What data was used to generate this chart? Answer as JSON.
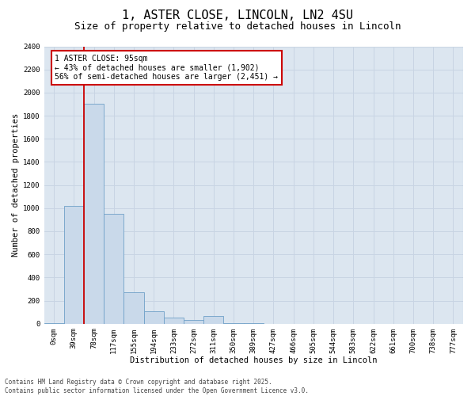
{
  "title_line1": "1, ASTER CLOSE, LINCOLN, LN2 4SU",
  "title_line2": "Size of property relative to detached houses in Lincoln",
  "xlabel": "Distribution of detached houses by size in Lincoln",
  "ylabel": "Number of detached properties",
  "categories": [
    "0sqm",
    "39sqm",
    "78sqm",
    "117sqm",
    "155sqm",
    "194sqm",
    "233sqm",
    "272sqm",
    "311sqm",
    "350sqm",
    "389sqm",
    "427sqm",
    "466sqm",
    "505sqm",
    "544sqm",
    "583sqm",
    "622sqm",
    "661sqm",
    "700sqm",
    "738sqm",
    "777sqm"
  ],
  "values": [
    5,
    1020,
    1900,
    950,
    270,
    110,
    55,
    30,
    70,
    4,
    2,
    0,
    0,
    0,
    0,
    0,
    0,
    0,
    0,
    0,
    0
  ],
  "bar_color": "#c9d9ea",
  "bar_edge_color": "#6fa0c8",
  "grid_color": "#c8d4e3",
  "bg_color": "#dce6f0",
  "vline_color": "#cc0000",
  "vline_pos": 1.5,
  "annotation_text": "1 ASTER CLOSE: 95sqm\n← 43% of detached houses are smaller (1,902)\n56% of semi-detached houses are larger (2,451) →",
  "annotation_box_color": "#cc0000",
  "ylim": [
    0,
    2400
  ],
  "yticks": [
    0,
    200,
    400,
    600,
    800,
    1000,
    1200,
    1400,
    1600,
    1800,
    2000,
    2200,
    2400
  ],
  "footnote": "Contains HM Land Registry data © Crown copyright and database right 2025.\nContains public sector information licensed under the Open Government Licence v3.0.",
  "title_fontsize": 11,
  "subtitle_fontsize": 9,
  "label_fontsize": 7.5,
  "tick_fontsize": 6.5,
  "annotation_fontsize": 7,
  "footnote_fontsize": 5.5
}
